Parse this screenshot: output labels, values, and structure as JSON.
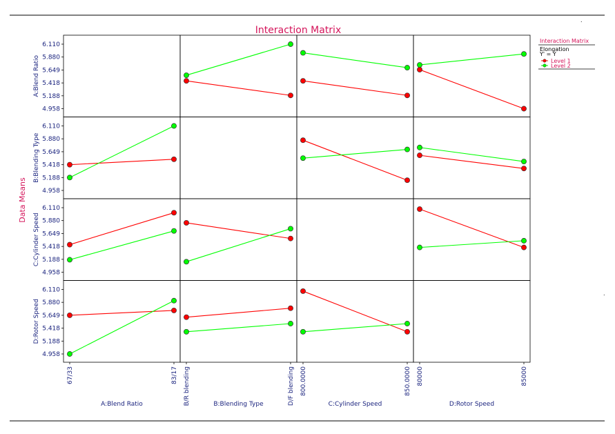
{
  "chart_data": {
    "type": "line",
    "title": "Interaction Matrix",
    "ylabel": "Data Means",
    "y_ticks": [
      "6.110",
      "5.880",
      "5.649",
      "5.418",
      "5.188",
      "4.958"
    ],
    "ylim": [
      4.958,
      6.11
    ],
    "factors": [
      {
        "name": "A:Blend Ratio",
        "levels": [
          "67/33",
          "83/17"
        ]
      },
      {
        "name": "B:Blending Type",
        "levels": [
          "B/R blending",
          "D/F blending"
        ]
      },
      {
        "name": "C:Cylinder Speed",
        "levels": [
          "800.0000",
          "850.0000"
        ]
      },
      {
        "name": "D:Rotor Speed",
        "levels": [
          "80000",
          "85000"
        ]
      }
    ],
    "legend": {
      "title": "Interaction Matrix",
      "subtitle": "Elongation",
      "formula": "Y' = Y",
      "series": [
        {
          "name": "Level 1",
          "color": "#ff0000"
        },
        {
          "name": "Level 2",
          "color": "#00ff00"
        }
      ]
    },
    "cells": [
      {
        "row": 0,
        "col": 1,
        "level1": [
          5.455,
          5.195
        ],
        "level2": [
          5.555,
          6.11
        ]
      },
      {
        "row": 0,
        "col": 2,
        "level1": [
          5.455,
          5.195
        ],
        "level2": [
          5.955,
          5.69
        ]
      },
      {
        "row": 0,
        "col": 3,
        "level1": [
          5.655,
          4.958
        ],
        "level2": [
          5.74,
          5.935
        ]
      },
      {
        "row": 1,
        "col": 0,
        "level1": [
          5.418,
          5.515
        ],
        "level2": [
          5.188,
          6.11
        ]
      },
      {
        "row": 1,
        "col": 2,
        "level1": [
          5.855,
          5.14
        ],
        "level2": [
          5.535,
          5.69
        ]
      },
      {
        "row": 1,
        "col": 3,
        "level1": [
          5.585,
          5.35
        ],
        "level2": [
          5.725,
          5.475
        ]
      },
      {
        "row": 2,
        "col": 0,
        "level1": [
          5.45,
          6.02
        ],
        "level2": [
          5.18,
          5.695
        ]
      },
      {
        "row": 2,
        "col": 1,
        "level1": [
          5.84,
          5.56
        ],
        "level2": [
          5.145,
          5.735
        ]
      },
      {
        "row": 2,
        "col": 3,
        "level1": [
          6.085,
          5.4
        ],
        "level2": [
          5.4,
          5.52
        ]
      },
      {
        "row": 3,
        "col": 0,
        "level1": [
          5.649,
          5.735
        ],
        "level2": [
          4.958,
          5.91
        ]
      },
      {
        "row": 3,
        "col": 1,
        "level1": [
          5.615,
          5.775
        ],
        "level2": [
          5.355,
          5.5
        ]
      },
      {
        "row": 3,
        "col": 2,
        "level1": [
          6.08,
          5.355
        ],
        "level2": [
          5.355,
          5.5
        ]
      }
    ]
  }
}
